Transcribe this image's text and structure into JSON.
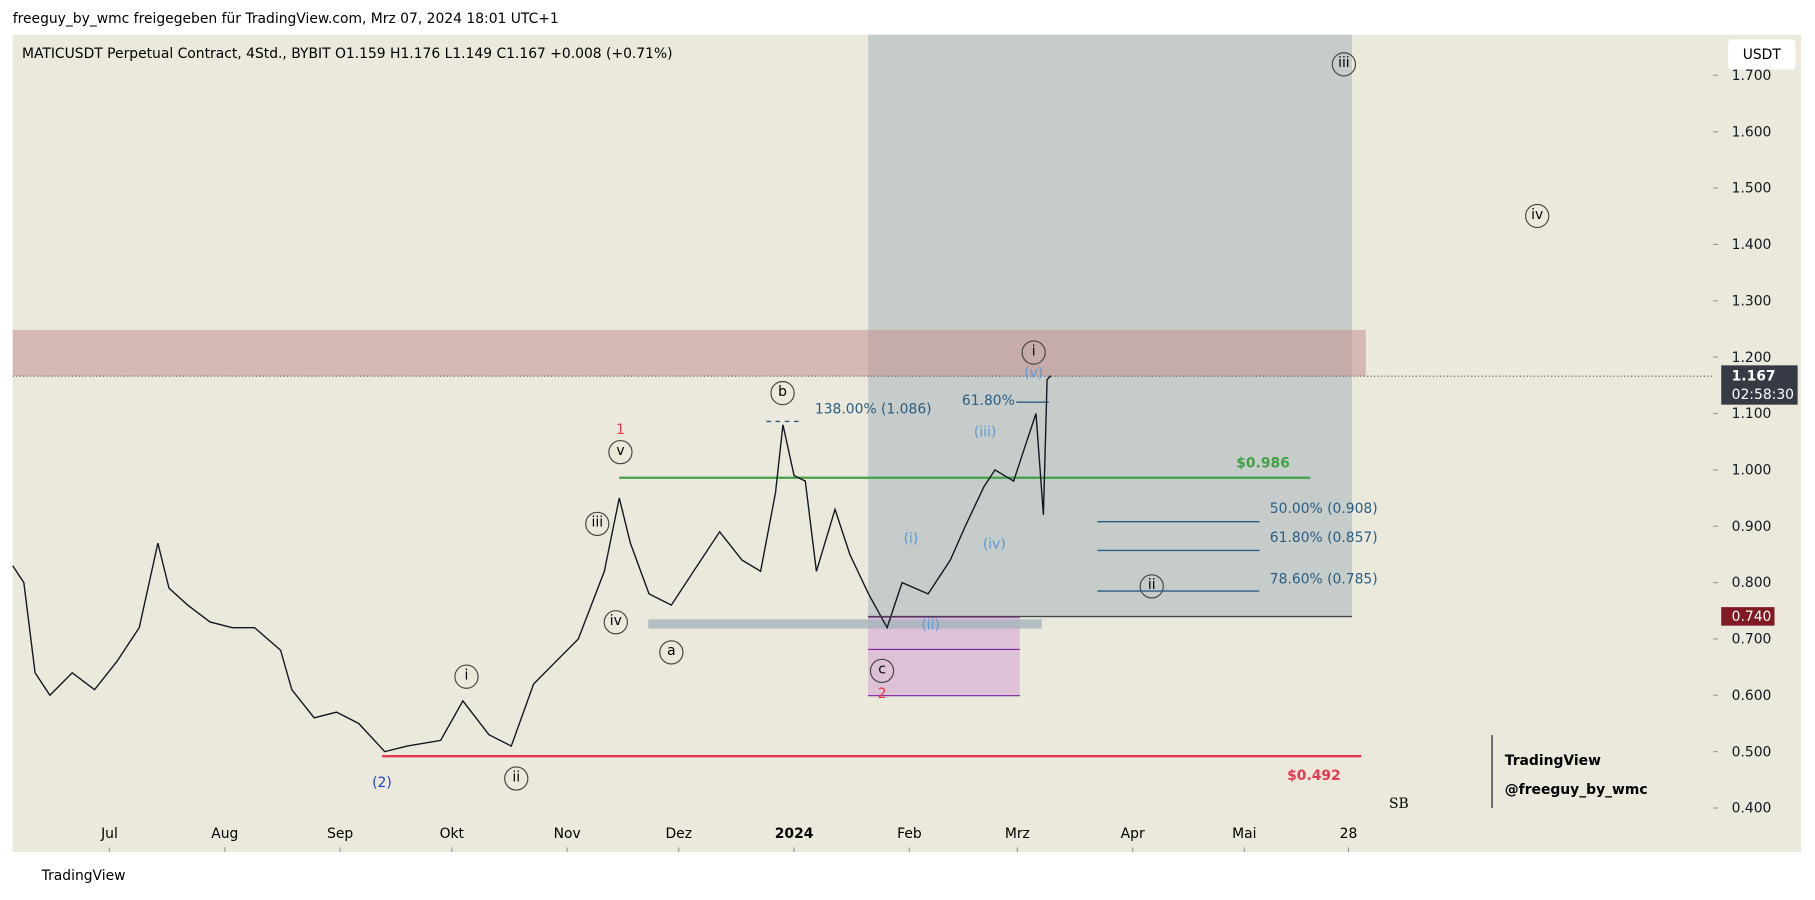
{
  "header": {
    "title": "freeguy_by_wmc freigegeben für TradingView.com, Mrz 07, 2024 18:01 UTC+1",
    "footer": "TradingView"
  },
  "chart_data": {
    "type": "line",
    "title": "MATICUSDT Perpetual Contract, 4Std., BYBIT  O1.159  H1.176  L1.149  C1.167  +0.008 (+0.71%)",
    "currency": "USDT",
    "color": "#131722",
    "x": [
      4,
      7,
      10,
      14,
      20,
      26,
      32,
      38,
      43,
      46,
      51,
      57,
      63,
      69,
      76,
      79,
      85,
      91,
      97,
      104,
      110,
      119,
      125,
      132,
      138,
      144,
      150,
      156,
      163,
      167,
      170,
      175,
      181,
      187,
      194,
      200,
      205,
      209,
      211,
      214,
      217,
      220,
      225,
      229,
      234,
      239,
      243,
      250,
      256,
      260,
      265,
      268,
      273,
      276,
      279,
      281,
      282,
      283
    ],
    "values": [
      0.83,
      0.8,
      0.64,
      0.6,
      0.64,
      0.61,
      0.66,
      0.72,
      0.87,
      0.79,
      0.76,
      0.73,
      0.72,
      0.72,
      0.68,
      0.61,
      0.56,
      0.57,
      0.55,
      0.5,
      0.51,
      0.52,
      0.59,
      0.53,
      0.51,
      0.62,
      0.66,
      0.7,
      0.82,
      0.95,
      0.87,
      0.78,
      0.76,
      0.82,
      0.89,
      0.84,
      0.82,
      0.96,
      1.08,
      0.99,
      0.98,
      0.82,
      0.93,
      0.85,
      0.78,
      0.72,
      0.8,
      0.78,
      0.84,
      0.9,
      0.97,
      1.0,
      0.98,
      1.04,
      1.1,
      0.92,
      1.16,
      1.167
    ],
    "xlim": [
      4,
      461
    ],
    "xticks": [
      {
        "value": 30,
        "label": "Jul"
      },
      {
        "value": 61,
        "label": "Aug"
      },
      {
        "value": 92,
        "label": "Sep"
      },
      {
        "value": 122,
        "label": "Okt"
      },
      {
        "value": 153,
        "label": "Nov"
      },
      {
        "value": 183,
        "label": "Dez"
      },
      {
        "value": 214,
        "label": "2024"
      },
      {
        "value": 245,
        "label": "Feb"
      },
      {
        "value": 274,
        "label": "Mrz"
      },
      {
        "value": 305,
        "label": "Apr"
      },
      {
        "value": 335,
        "label": "Mai"
      },
      {
        "value": 363,
        "label": "28"
      }
    ],
    "ylim": [
      0.322,
      1.772
    ],
    "yticks": [
      {
        "value": 0.4,
        "label": "0.400"
      },
      {
        "value": 0.5,
        "label": "0.500"
      },
      {
        "value": 0.6,
        "label": "0.600"
      },
      {
        "value": 0.7,
        "label": "0.700"
      },
      {
        "value": 0.8,
        "label": "0.800"
      },
      {
        "value": 0.9,
        "label": "0.900"
      },
      {
        "value": 1.0,
        "label": "1.000"
      },
      {
        "value": 1.1,
        "label": "1.100"
      },
      {
        "value": 1.2,
        "label": "1.200"
      },
      {
        "value": 1.3,
        "label": "1.300"
      },
      {
        "value": 1.4,
        "label": "1.400"
      },
      {
        "value": 1.5,
        "label": "1.500"
      },
      {
        "value": 1.6,
        "label": "1.600"
      },
      {
        "value": 1.7,
        "label": "1.700"
      }
    ],
    "last_price": {
      "value": 1.167,
      "label": "1.167",
      "countdown": "02:58:30"
    },
    "stop_price": {
      "value": 0.74,
      "label": "0.740"
    },
    "levels": [
      {
        "value": 0.986,
        "label": "$0.986",
        "color": "#43a047"
      },
      {
        "value": 0.492,
        "label": "$0.492",
        "color": "#e53950"
      },
      {
        "value": 0.908,
        "label": "50.00% (0.908)",
        "color": "#2a5d84"
      },
      {
        "value": 0.857,
        "label": "61.80% (0.857)",
        "color": "#2a5d84"
      },
      {
        "value": 0.785,
        "label": "78.60% (0.785)",
        "color": "#2a5d84"
      },
      {
        "value": 1.086,
        "label": "138.00% (1.086)",
        "color": "#2a5d84"
      },
      {
        "value": 1.12,
        "label": "61.80%",
        "color": "#2a5d84"
      }
    ],
    "annotations": [
      "1",
      "v",
      "iii",
      "iv",
      "a",
      "b",
      "c",
      "2",
      "(2)",
      "i",
      "ii",
      "(i)",
      "(ii)",
      "(iii)",
      "(iv)",
      "(v)",
      "i",
      "iii",
      "iv",
      "ii"
    ],
    "watermark": [
      "TradingView",
      "@freeguy_by_wmc"
    ]
  }
}
